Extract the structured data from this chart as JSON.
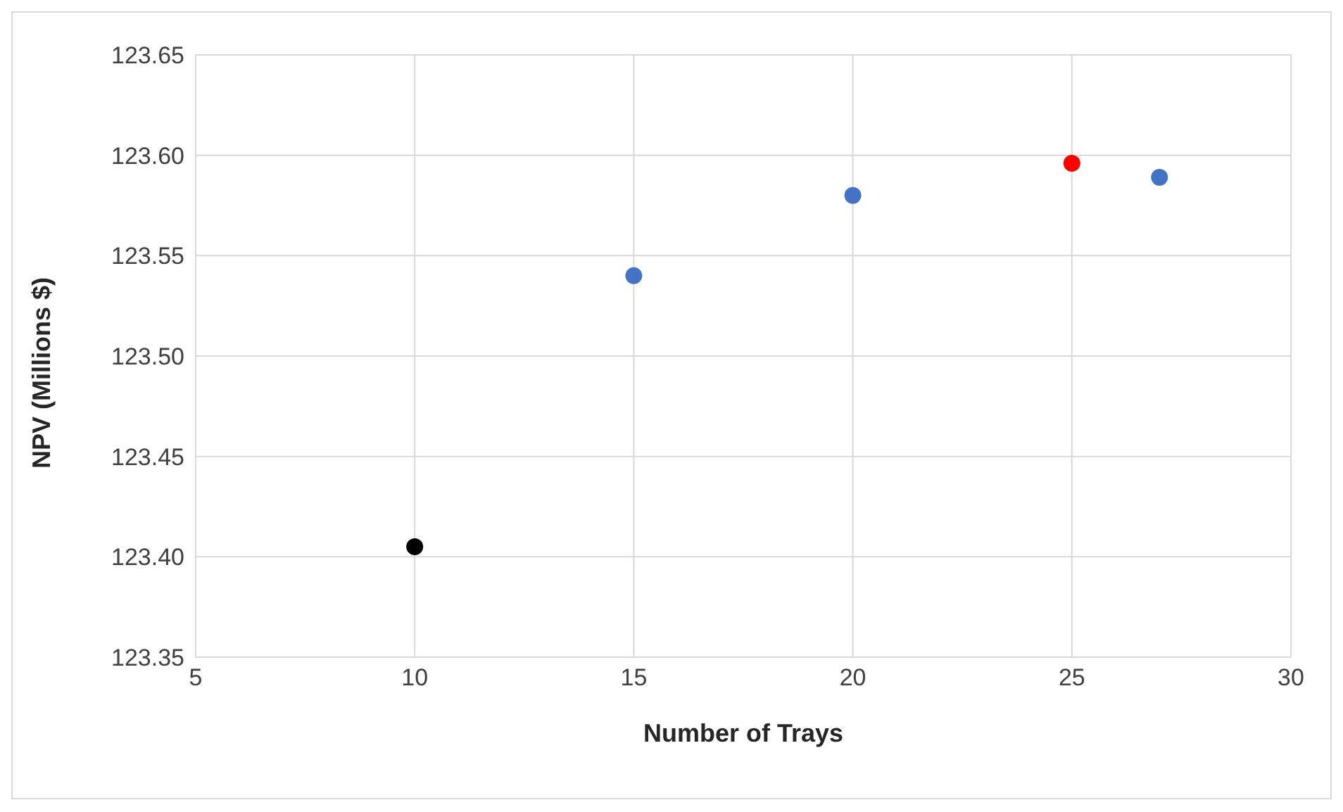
{
  "chart_data": {
    "type": "scatter",
    "xlabel": "Number of Trays",
    "ylabel": "NPV (Millions $)",
    "x": [
      10,
      15,
      20,
      25,
      27
    ],
    "values": [
      123.405,
      123.54,
      123.58,
      123.596,
      123.589
    ],
    "colors": [
      "#000000",
      "#4472c4",
      "#4472c4",
      "#ff0000",
      "#4472c4"
    ],
    "xlim": [
      5,
      30
    ],
    "xticks": [
      5,
      10,
      15,
      20,
      25,
      30
    ],
    "ylim": [
      123.35,
      123.65
    ],
    "yticks": [
      123.35,
      {
        "value": 123.4,
        "label": "123.40"
      },
      123.45,
      {
        "value": 123.5,
        "label": "123.50"
      },
      123.55,
      {
        "value": 123.6,
        "label": "123.60"
      },
      123.65
    ],
    "grid": true,
    "marker": "circle"
  }
}
